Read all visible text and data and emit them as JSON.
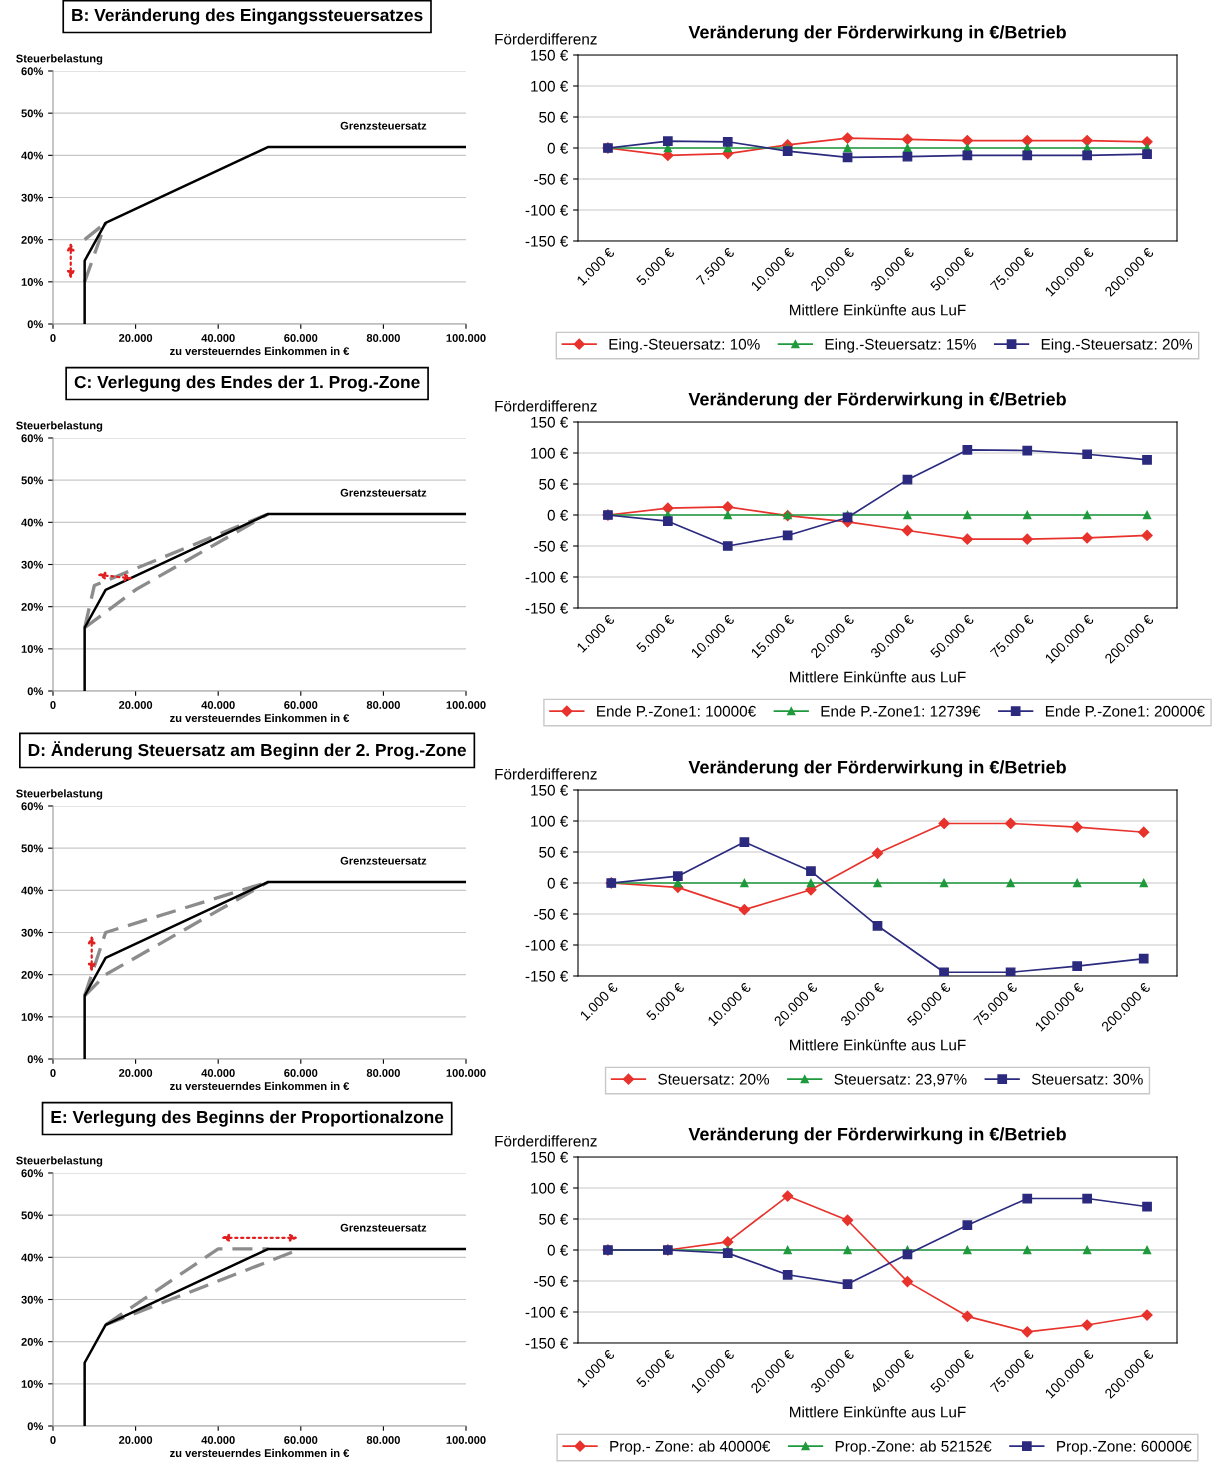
{
  "chart_data": [
    {
      "type": "line",
      "title": "B: Veränderung des Eingangssteuersatzes",
      "xlabel": "zu versteuerndes Einkommen in €",
      "ylabel": "Steuerbelastung",
      "xlim": [
        0,
        100000
      ],
      "ylim": [
        0,
        60
      ],
      "xticks": [
        0,
        {
          "value": 20000,
          "label": "20.000"
        },
        {
          "value": 40000,
          "label": "40.000"
        },
        {
          "value": 60000,
          "label": "60.000"
        },
        {
          "value": 80000,
          "label": "80.000"
        },
        {
          "value": 100000,
          "label": "100.000"
        }
      ],
      "yticks": [
        {
          "value": 0,
          "label": "0%"
        },
        {
          "value": 10,
          "label": "10%"
        },
        {
          "value": 20,
          "label": "20%"
        },
        {
          "value": 30,
          "label": "30%"
        },
        {
          "value": 40,
          "label": "40%"
        },
        {
          "value": 50,
          "label": "50%"
        },
        {
          "value": 60,
          "label": "60%"
        }
      ],
      "grid": "y",
      "annotations": [
        "Grenzsteuersatz"
      ],
      "series": [
        {
          "color": "#000000",
          "line_style": "solid",
          "x": [
            7664,
            7664,
            12739,
            52152,
            100000
          ],
          "values": [
            0,
            15,
            24,
            42,
            42
          ]
        },
        {
          "color": "#8c8c8c",
          "line_style": "dashed",
          "x": [
            7664,
            12739
          ],
          "values": [
            10,
            24
          ]
        },
        {
          "color": "#8c8c8c",
          "line_style": "dashed",
          "x": [
            7664,
            12739
          ],
          "values": [
            20,
            24
          ]
        }
      ]
    },
    {
      "type": "line",
      "title": "Veränderung der Förderwirkung in €/Betrieb",
      "xlabel": "Mittlere Einkünfte aus LuF",
      "ylabel": "Förderdifferenz",
      "categories": [
        "1.000 €",
        "5.000 €",
        "7.500 €",
        "10.000 €",
        "20.000 €",
        "30.000 €",
        "50.000 €",
        "75.000 €",
        "100.000 €",
        "200.000 €"
      ],
      "ylim": [
        -150,
        150
      ],
      "yticks": [
        {
          "value": -150,
          "label": "-150 €"
        },
        {
          "value": -100,
          "label": "-100 €"
        },
        {
          "value": -50,
          "label": "-50 €"
        },
        {
          "value": 0,
          "label": "0 €"
        },
        {
          "value": 50,
          "label": "50 €"
        },
        {
          "value": 100,
          "label": "100 €"
        },
        {
          "value": 150,
          "label": "150 €"
        }
      ],
      "grid": "y",
      "legend": "bottom",
      "series": [
        {
          "name": "Eing.-Steuersatz: 10%",
          "color": "#e8322c",
          "marker": "diamond",
          "values": [
            0,
            -12,
            -9,
            5,
            16,
            14,
            12,
            12,
            12,
            10
          ]
        },
        {
          "name": "Eing.-Steuersatz: 15%",
          "color": "#1e9a3c",
          "marker": "triangle",
          "values": [
            0,
            0,
            0,
            0,
            0,
            0,
            0,
            0,
            0,
            0
          ]
        },
        {
          "name": "Eing.-Steuersatz: 20%",
          "color": "#2b2a7e",
          "marker": "square",
          "values": [
            0,
            11,
            10,
            -5,
            -15,
            -14,
            -12,
            -12,
            -12,
            -10
          ]
        }
      ]
    },
    {
      "type": "line",
      "title": "C: Verlegung des Endes der 1. Prog.-Zone",
      "xlabel": "zu versteuerndes Einkommen in €",
      "ylabel": "Steuerbelastung",
      "xlim": [
        0,
        100000
      ],
      "ylim": [
        0,
        60
      ],
      "xticks": [
        0,
        {
          "value": 20000,
          "label": "20.000"
        },
        {
          "value": 40000,
          "label": "40.000"
        },
        {
          "value": 60000,
          "label": "60.000"
        },
        {
          "value": 80000,
          "label": "80.000"
        },
        {
          "value": 100000,
          "label": "100.000"
        }
      ],
      "yticks": [
        {
          "value": 0,
          "label": "0%"
        },
        {
          "value": 10,
          "label": "10%"
        },
        {
          "value": 20,
          "label": "20%"
        },
        {
          "value": 30,
          "label": "30%"
        },
        {
          "value": 40,
          "label": "40%"
        },
        {
          "value": 50,
          "label": "50%"
        },
        {
          "value": 60,
          "label": "60%"
        }
      ],
      "grid": "y",
      "annotations": [
        "Grenzsteuersatz"
      ],
      "series": [
        {
          "color": "#000000",
          "line_style": "solid",
          "x": [
            7664,
            7664,
            12739,
            52152,
            100000
          ],
          "values": [
            0,
            15,
            24,
            42,
            42
          ]
        },
        {
          "color": "#8c8c8c",
          "line_style": "dashed",
          "x": [
            7664,
            10000,
            52152
          ],
          "values": [
            15,
            25,
            42
          ]
        },
        {
          "color": "#8c8c8c",
          "line_style": "dashed",
          "x": [
            7664,
            20000,
            52152
          ],
          "values": [
            15,
            24,
            42
          ]
        }
      ]
    },
    {
      "type": "line",
      "title": "Veränderung der Förderwirkung in €/Betrieb",
      "xlabel": "Mittlere Einkünfte aus LuF",
      "ylabel": "Förderdifferenz",
      "categories": [
        "1.000 €",
        "5.000 €",
        "10.000 €",
        "15.000 €",
        "20.000 €",
        "30.000 €",
        "50.000 €",
        "75.000 €",
        "100.000 €",
        "200.000 €"
      ],
      "ylim": [
        -150,
        150
      ],
      "yticks": [
        {
          "value": -150,
          "label": "-150 €"
        },
        {
          "value": -100,
          "label": "-100 €"
        },
        {
          "value": -50,
          "label": "-50 €"
        },
        {
          "value": 0,
          "label": "0 €"
        },
        {
          "value": 50,
          "label": "50 €"
        },
        {
          "value": 100,
          "label": "100 €"
        },
        {
          "value": 150,
          "label": "150 €"
        }
      ],
      "grid": "y",
      "legend": "bottom",
      "series": [
        {
          "name": "Ende P.-Zone1: 10000€",
          "color": "#e8322c",
          "marker": "diamond",
          "values": [
            0,
            11,
            13,
            -1,
            -11,
            -25,
            -39,
            -39,
            -37,
            -33
          ]
        },
        {
          "name": "Ende P.-Zone1: 12739€",
          "color": "#1e9a3c",
          "marker": "triangle",
          "values": [
            0,
            0,
            0,
            0,
            0,
            0,
            0,
            0,
            0,
            0
          ]
        },
        {
          "name": "Ende P.-Zone1: 20000€",
          "color": "#2b2a7e",
          "marker": "square",
          "values": [
            0,
            -10,
            -50,
            -33,
            -4,
            57,
            105,
            104,
            98,
            89
          ]
        }
      ]
    },
    {
      "type": "line",
      "title": "D: Änderung Steuersatz am Beginn der 2. Prog.-Zone",
      "xlabel": "zu versteuerndes Einkommen in €",
      "ylabel": "Steuerbelastung",
      "xlim": [
        0,
        100000
      ],
      "ylim": [
        0,
        60
      ],
      "xticks": [
        0,
        {
          "value": 20000,
          "label": "20.000"
        },
        {
          "value": 40000,
          "label": "40.000"
        },
        {
          "value": 60000,
          "label": "60.000"
        },
        {
          "value": 80000,
          "label": "80.000"
        },
        {
          "value": 100000,
          "label": "100.000"
        }
      ],
      "yticks": [
        {
          "value": 0,
          "label": "0%"
        },
        {
          "value": 10,
          "label": "10%"
        },
        {
          "value": 20,
          "label": "20%"
        },
        {
          "value": 30,
          "label": "30%"
        },
        {
          "value": 40,
          "label": "40%"
        },
        {
          "value": 50,
          "label": "50%"
        },
        {
          "value": 60,
          "label": "60%"
        }
      ],
      "grid": "y",
      "annotations": [
        "Grenzsteuersatz"
      ],
      "series": [
        {
          "color": "#000000",
          "line_style": "solid",
          "x": [
            7664,
            7664,
            12739,
            52152,
            100000
          ],
          "values": [
            0,
            15,
            24,
            42,
            42
          ]
        },
        {
          "color": "#8c8c8c",
          "line_style": "dashed",
          "x": [
            7664,
            12739,
            52152
          ],
          "values": [
            15,
            20,
            42
          ]
        },
        {
          "color": "#8c8c8c",
          "line_style": "dashed",
          "x": [
            7664,
            12739,
            52152
          ],
          "values": [
            15,
            30,
            42
          ]
        }
      ]
    },
    {
      "type": "line",
      "title": "Veränderung der Förderwirkung in €/Betrieb",
      "xlabel": "Mittlere Einkünfte aus LuF",
      "ylabel": "Förderdifferenz",
      "categories": [
        "1.000 €",
        "5.000 €",
        "10.000 €",
        "20.000 €",
        "30.000 €",
        "50.000 €",
        "75.000 €",
        "100.000 €",
        "200.000 €"
      ],
      "ylim": [
        -150,
        150
      ],
      "yticks": [
        {
          "value": -150,
          "label": "-150 €"
        },
        {
          "value": -100,
          "label": "-100 €"
        },
        {
          "value": -50,
          "label": "-50 €"
        },
        {
          "value": 0,
          "label": "0 €"
        },
        {
          "value": 50,
          "label": "50 €"
        },
        {
          "value": 100,
          "label": "100 €"
        },
        {
          "value": 150,
          "label": "150 €"
        }
      ],
      "grid": "y",
      "legend": "bottom",
      "series": [
        {
          "name": "Steuersatz: 20%",
          "color": "#e8322c",
          "marker": "diamond",
          "values": [
            0,
            -7,
            -43,
            -11,
            48,
            96,
            96,
            90,
            82
          ]
        },
        {
          "name": "Steuersatz: 23,97%",
          "color": "#1e9a3c",
          "marker": "triangle",
          "values": [
            0,
            0,
            0,
            0,
            0,
            0,
            0,
            0,
            0
          ]
        },
        {
          "name": "Steuersatz: 30%",
          "color": "#2b2a7e",
          "marker": "square",
          "values": [
            0,
            11,
            66,
            19,
            -69,
            -144,
            -144,
            -134,
            -122
          ]
        }
      ]
    },
    {
      "type": "line",
      "title": "E: Verlegung des Beginns der Proportionalzone",
      "xlabel": "zu versteuerndes Einkommen in €",
      "ylabel": "Steuerbelastung",
      "xlim": [
        0,
        100000
      ],
      "ylim": [
        0,
        60
      ],
      "xticks": [
        0,
        {
          "value": 20000,
          "label": "20.000"
        },
        {
          "value": 40000,
          "label": "40.000"
        },
        {
          "value": 60000,
          "label": "60.000"
        },
        {
          "value": 80000,
          "label": "80.000"
        },
        {
          "value": 100000,
          "label": "100.000"
        }
      ],
      "yticks": [
        {
          "value": 0,
          "label": "0%"
        },
        {
          "value": 10,
          "label": "10%"
        },
        {
          "value": 20,
          "label": "20%"
        },
        {
          "value": 30,
          "label": "30%"
        },
        {
          "value": 40,
          "label": "40%"
        },
        {
          "value": 50,
          "label": "50%"
        },
        {
          "value": 60,
          "label": "60%"
        }
      ],
      "grid": "y",
      "annotations": [
        "Grenzsteuersatz"
      ],
      "series": [
        {
          "color": "#000000",
          "line_style": "solid",
          "x": [
            7664,
            7664,
            12739,
            52152,
            100000
          ],
          "values": [
            0,
            15,
            24,
            42,
            42
          ]
        },
        {
          "color": "#8c8c8c",
          "line_style": "dashed",
          "x": [
            12739,
            40000,
            52152
          ],
          "values": [
            24,
            42,
            42
          ]
        },
        {
          "color": "#8c8c8c",
          "line_style": "dashed",
          "x": [
            12739,
            60000
          ],
          "values": [
            24,
            42
          ]
        }
      ]
    },
    {
      "type": "line",
      "title": "Veränderung der Förderwirkung in €/Betrieb",
      "xlabel": "Mittlere Einkünfte aus LuF",
      "ylabel": "Förderdifferenz",
      "categories": [
        "1.000 €",
        "5.000 €",
        "10.000 €",
        "20.000 €",
        "30.000 €",
        "40.000 €",
        "50.000 €",
        "75.000 €",
        "100.000 €",
        "200.000 €"
      ],
      "ylim": [
        -150,
        150
      ],
      "yticks": [
        {
          "value": -150,
          "label": "-150 €"
        },
        {
          "value": -100,
          "label": "-100 €"
        },
        {
          "value": -50,
          "label": "-50 €"
        },
        {
          "value": 0,
          "label": "0 €"
        },
        {
          "value": 50,
          "label": "50 €"
        },
        {
          "value": 100,
          "label": "100 €"
        },
        {
          "value": 150,
          "label": "150 €"
        }
      ],
      "grid": "y",
      "legend": "bottom",
      "series": [
        {
          "name": "Prop.- Zone: ab 40000€",
          "color": "#e8322c",
          "marker": "diamond",
          "values": [
            0,
            0,
            13,
            87,
            48,
            -51,
            -107,
            -132,
            -121,
            -105
          ]
        },
        {
          "name": "Prop.-Zone: ab 52152€",
          "color": "#1e9a3c",
          "marker": "triangle",
          "values": [
            0,
            0,
            0,
            0,
            0,
            0,
            0,
            0,
            0,
            0
          ]
        },
        {
          "name": "Prop.-Zone: 60000€",
          "color": "#2b2a7e",
          "marker": "square",
          "values": [
            0,
            0,
            -5,
            -40,
            -55,
            -7,
            40,
            83,
            83,
            70
          ]
        }
      ]
    }
  ]
}
